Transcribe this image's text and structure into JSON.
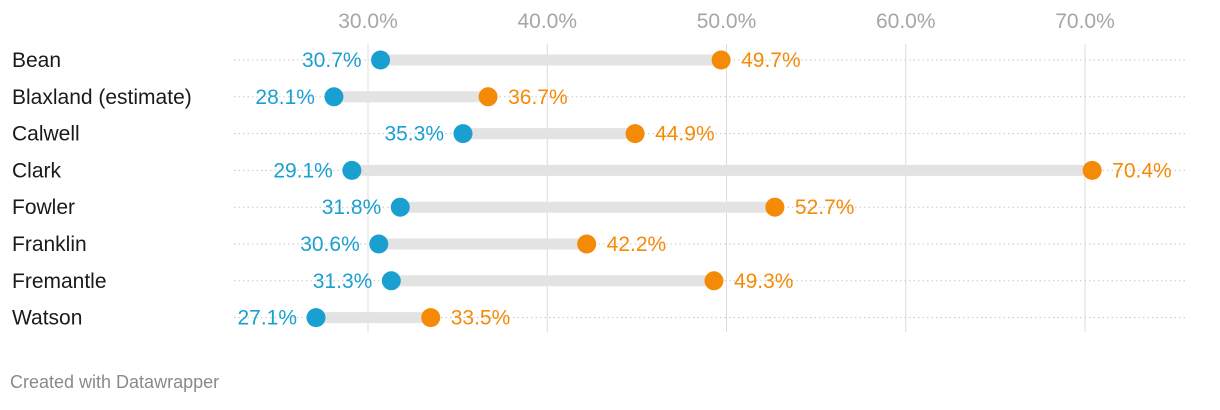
{
  "chart_data": {
    "type": "dot-range",
    "x_axis": {
      "ticks": [
        30,
        40,
        50,
        60,
        70
      ],
      "tick_labels": [
        "30.0%",
        "40.0%",
        "50.0%",
        "60.0%",
        "70.0%"
      ],
      "range": [
        22.5,
        76.5
      ]
    },
    "grid": true,
    "colors": {
      "start": "#1a9fd1",
      "end": "#f58a07",
      "range_bar": "#e3e3e3",
      "grid": "#dcdcdc",
      "tick_text": "#a6a6a6"
    },
    "rows": [
      {
        "category": "Bean",
        "start": 30.7,
        "end": 49.7,
        "start_label": "30.7%",
        "end_label": "49.7%"
      },
      {
        "category": "Blaxland (estimate)",
        "start": 28.1,
        "end": 36.7,
        "start_label": "28.1%",
        "end_label": "36.7%"
      },
      {
        "category": "Calwell",
        "start": 35.3,
        "end": 44.9,
        "start_label": "35.3%",
        "end_label": "44.9%"
      },
      {
        "category": "Clark",
        "start": 29.1,
        "end": 70.4,
        "start_label": "29.1%",
        "end_label": "70.4%"
      },
      {
        "category": "Fowler",
        "start": 31.8,
        "end": 52.7,
        "start_label": "31.8%",
        "end_label": "52.7%"
      },
      {
        "category": "Franklin",
        "start": 30.6,
        "end": 42.2,
        "start_label": "30.6%",
        "end_label": "42.2%"
      },
      {
        "category": "Fremantle",
        "start": 31.3,
        "end": 49.3,
        "start_label": "31.3%",
        "end_label": "49.3%"
      },
      {
        "category": "Watson",
        "start": 27.1,
        "end": 33.5,
        "start_label": "27.1%",
        "end_label": "33.5%"
      }
    ]
  },
  "footer": {
    "credit": "Created with Datawrapper"
  }
}
